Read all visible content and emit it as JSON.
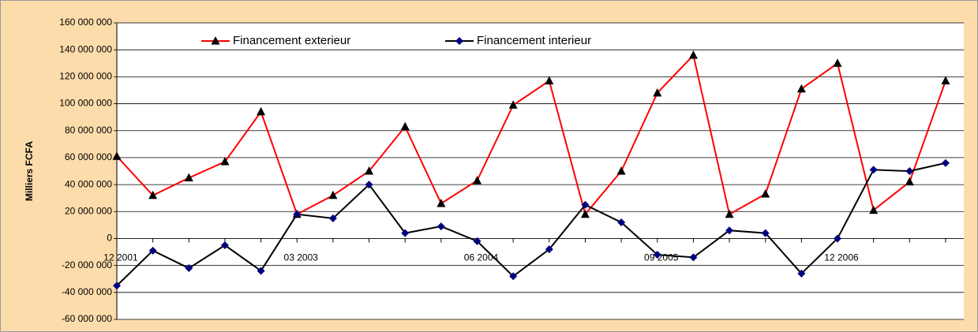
{
  "chart_data": {
    "type": "line",
    "y_label": "Milliers FCFA",
    "categories": [
      "12 2001",
      null,
      null,
      null,
      null,
      "03 2003",
      null,
      null,
      null,
      null,
      "06 2004",
      null,
      null,
      null,
      null,
      "09 2005",
      null,
      null,
      null,
      null,
      "12 2006",
      null,
      null,
      null
    ],
    "series": [
      {
        "name": "Financement exterieur",
        "color": "#ff0000",
        "marker_color": "#000000",
        "marker": "triangle",
        "values": [
          61000000,
          32000000,
          45000000,
          57000000,
          94000000,
          18000000,
          32000000,
          50000000,
          83000000,
          26000000,
          43000000,
          99000000,
          117000000,
          18000000,
          50000000,
          108000000,
          136000000,
          18000000,
          33000000,
          111000000,
          130000000,
          21000000,
          42000000,
          117000000
        ]
      },
      {
        "name": "Financement interieur",
        "color": "#000000",
        "marker_color": "#000080",
        "marker": "diamond",
        "values": [
          -35000000,
          -9000000,
          -22000000,
          -5000000,
          -24000000,
          18000000,
          15000000,
          40000000,
          4000000,
          9000000,
          -2000000,
          -28000000,
          -8000000,
          25000000,
          12000000,
          -12000000,
          -14000000,
          6000000,
          4000000,
          -26000000,
          0,
          51000000,
          50000000,
          56000000
        ]
      }
    ],
    "ylim": [
      -60000000,
      160000000
    ],
    "yticks": [
      {
        "value": -60000000,
        "label": "-60 000 000"
      },
      {
        "value": -40000000,
        "label": "-40 000 000"
      },
      {
        "value": -20000000,
        "label": "-20 000 000"
      },
      0,
      {
        "value": 20000000,
        "label": "20 000 000"
      },
      {
        "value": 40000000,
        "label": "40 000 000"
      },
      {
        "value": 60000000,
        "label": "60 000 000"
      },
      {
        "value": 80000000,
        "label": "80 000 000"
      },
      {
        "value": 100000000,
        "label": "100 000 000"
      },
      {
        "value": 120000000,
        "label": "120 000 000"
      },
      {
        "value": 140000000,
        "label": "140 000 000"
      },
      {
        "value": 160000000,
        "label": "160 000 000"
      }
    ],
    "grid": true,
    "legend": "top"
  }
}
